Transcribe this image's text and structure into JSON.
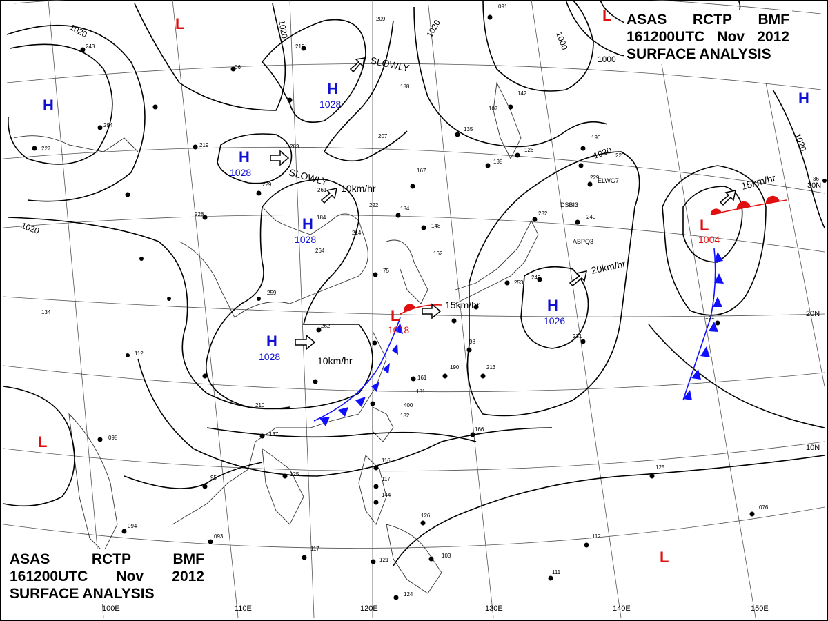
{
  "header": {
    "line1": [
      "ASAS",
      "RCTP",
      "BMF"
    ],
    "line2": [
      "161200UTC",
      "Nov",
      "2012"
    ],
    "line3": "SURFACE ANALYSIS"
  },
  "colors": {
    "high": "#1010d0",
    "low": "#e01010",
    "cold_front": "#1010ff",
    "warm_front": "#e01010",
    "isobar": "#000000"
  },
  "pressure_systems": [
    {
      "type": "H",
      "value": "",
      "name": "high-northwest"
    },
    {
      "type": "H",
      "value": "1028",
      "name": "high-north-central"
    },
    {
      "type": "H",
      "value": "1028",
      "name": "high-mongolia"
    },
    {
      "type": "H",
      "value": "1028",
      "name": "high-north-china"
    },
    {
      "type": "H",
      "value": "1028",
      "name": "high-central-china"
    },
    {
      "type": "H",
      "value": "1026",
      "name": "high-east-of-japan"
    },
    {
      "type": "H",
      "value": "",
      "name": "high-far-east"
    },
    {
      "type": "L",
      "value": "1018",
      "name": "low-east-china-sea"
    },
    {
      "type": "L",
      "value": "1004",
      "name": "low-pacific"
    },
    {
      "type": "L",
      "value": "",
      "name": "low-north-top"
    },
    {
      "type": "L",
      "value": "",
      "name": "low-northeast"
    },
    {
      "type": "L",
      "value": "",
      "name": "low-bay-of-bengal"
    },
    {
      "type": "L",
      "value": "",
      "name": "low-southeast"
    }
  ],
  "isobar_labels": [
    "1020",
    "1020",
    "1020",
    "1020",
    "1020",
    "1000",
    "1000",
    "1020"
  ],
  "movement_labels": [
    "SLOWLY",
    "SLOWLY",
    "10km/hr",
    "10km/hr",
    "15km/hr",
    "20km/hr",
    "15km/hr"
  ],
  "longitude_labels": [
    "100E",
    "110E",
    "120E",
    "130E",
    "140E",
    "150E"
  ],
  "latitude_labels": [
    "20N",
    "10N",
    "30N"
  ],
  "station_labels": [
    "ELWG7",
    "DSBI3",
    "ABPQ3"
  ]
}
